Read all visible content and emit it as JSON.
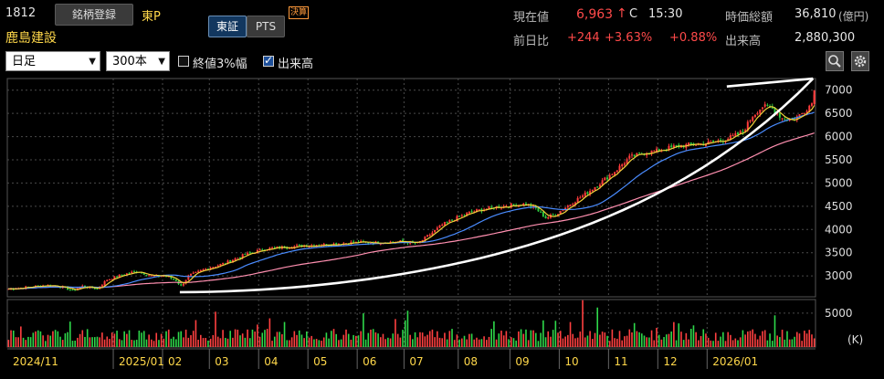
{
  "header": {
    "code": "1812",
    "register_button": "銘柄登録",
    "market": "東P",
    "company": "鹿島建設",
    "tab_tse": "東証",
    "tab_pts": "PTS",
    "badge": "決算"
  },
  "quote": {
    "price_label": "現在値",
    "price": "6,963",
    "price_arrow": "↑",
    "price_flag": "C",
    "time": "15:30",
    "mcap_label": "時価総額",
    "mcap": "36,810",
    "mcap_unit": "(億円)",
    "change_label": "前日比",
    "change": "+244",
    "change_pct": "+3.63%",
    "change_pct2": "+0.88%",
    "volume_label": "出来高",
    "volume": "2,880,300"
  },
  "controls": {
    "period": "日足",
    "count": "300本",
    "checkbox1_label": "終値3%幅",
    "checkbox1_checked": false,
    "checkbox2_label": "出来高",
    "checkbox2_checked": true,
    "zoom_icon": "magnifier-icon",
    "settings_icon": "gear-icon"
  },
  "chart_data": {
    "type": "candlestick",
    "price_ticks": [
      3000,
      3500,
      4000,
      4500,
      5000,
      5500,
      6000,
      6500,
      7000
    ],
    "price_range": [
      2550,
      7250
    ],
    "volume_ticks": [
      "5000",
      "(K)"
    ],
    "volume_range_k": [
      0,
      7000
    ],
    "x_labels": [
      "2024/11",
      "2025/01",
      "02",
      "03",
      "04",
      "05",
      "06",
      "07",
      "08",
      "09",
      "10",
      "11",
      "12",
      "2026/01"
    ],
    "close_trend": [
      [
        0,
        2720
      ],
      [
        8,
        2760
      ],
      [
        16,
        2800
      ],
      [
        22,
        2760
      ],
      [
        26,
        2680
      ],
      [
        30,
        2780
      ],
      [
        36,
        2720
      ],
      [
        40,
        2920
      ],
      [
        46,
        3020
      ],
      [
        52,
        3100
      ],
      [
        58,
        3000
      ],
      [
        64,
        3000
      ],
      [
        68,
        2900
      ],
      [
        70,
        2780
      ],
      [
        73,
        3000
      ],
      [
        80,
        3150
      ],
      [
        88,
        3280
      ],
      [
        96,
        3460
      ],
      [
        104,
        3580
      ],
      [
        112,
        3620
      ],
      [
        120,
        3650
      ],
      [
        130,
        3680
      ],
      [
        140,
        3720
      ],
      [
        150,
        3720
      ],
      [
        160,
        3740
      ],
      [
        166,
        3700
      ],
      [
        170,
        3850
      ],
      [
        176,
        4100
      ],
      [
        182,
        4250
      ],
      [
        188,
        4380
      ],
      [
        196,
        4470
      ],
      [
        204,
        4520
      ],
      [
        210,
        4550
      ],
      [
        214,
        4450
      ],
      [
        218,
        4250
      ],
      [
        222,
        4320
      ],
      [
        228,
        4550
      ],
      [
        234,
        4760
      ],
      [
        240,
        5000
      ],
      [
        246,
        5250
      ],
      [
        252,
        5550
      ],
      [
        258,
        5650
      ],
      [
        264,
        5700
      ],
      [
        270,
        5780
      ],
      [
        276,
        5820
      ],
      [
        282,
        5850
      ],
      [
        288,
        5900
      ],
      [
        294,
        6000
      ],
      [
        298,
        6100
      ],
      [
        302,
        6450
      ],
      [
        306,
        6650
      ],
      [
        310,
        6600
      ],
      [
        314,
        6400
      ],
      [
        318,
        6350
      ],
      [
        322,
        6500
      ],
      [
        326,
        6720
      ],
      [
        327,
        6963
      ]
    ],
    "annotation_line_color": "#ffffff",
    "colors": {
      "up": "#ff3b3b",
      "down": "#2ecc40",
      "ma_short": "#f2d23a",
      "ma_mid": "#4a8cff",
      "ma_long": "#ff8fb0",
      "grid": "#4a4a4a"
    }
  }
}
